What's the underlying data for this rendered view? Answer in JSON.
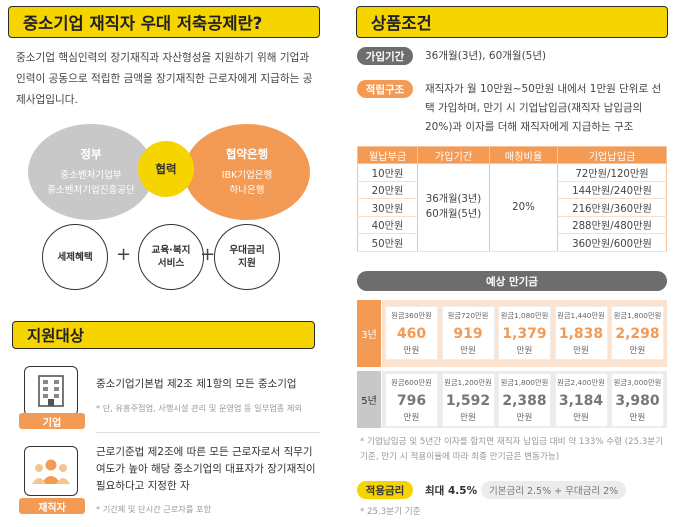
{
  "left": {
    "title": "중소기업 재직자 우대 저축공제란?",
    "intro": "중소기업 핵심인력의 장기재직과 자산형성을 지원하기 위해 기업과 인력이 공동으로 적립한 금액을 장기재직한 근로자에게 지급하는 공제사업입니다.",
    "gov": {
      "title": "정부",
      "line1": "중소벤처기업부",
      "line2": "중소벤처기업진흥공단"
    },
    "middle": "협력",
    "bank": {
      "title": "협약은행",
      "line1": "IBK기업은행",
      "line2": "하나은행"
    },
    "benefits": [
      "세제혜택",
      "교육·복지\n서비스",
      "우대금리\n지원"
    ],
    "plus": "+",
    "support_title": "지원대상",
    "company": {
      "tag": "기업",
      "text": "중소기업기본법 제2조 제1항의 모든 중소기업",
      "note": "* 단, 유흥주점업, 사행시설 관리 및 운영업 등 일부업종 제외"
    },
    "employee": {
      "tag": "재직자",
      "text": "근로기준법 제2조에 따른 모든 근로자로서 직무기여도가 높아 해당 중소기업의 대표자가 장기재직이 필요하다고 지정한 자",
      "note": "* 기간제 및 단시간 근로자를 포함"
    }
  },
  "right": {
    "title": "상품조건",
    "period_label": "가입기간",
    "period_value": "36개월(3년), 60개월(5년)",
    "structure_label": "적립구조",
    "structure_value": "재직자가 월 10만원~50만원 내에서 1만원 단위로 선택 가입하며, 만기 시 기업납입금(재직자 납입금의 20%)과 이자를 더해 재직자에게 지급하는 구조",
    "table": {
      "headers": [
        "월납부금",
        "가입기간",
        "매칭비율",
        "기업납입금"
      ],
      "monthly": [
        "10만원",
        "20만원",
        "30만원",
        "40만원",
        "50만원"
      ],
      "period": "36개월(3년)\n60개월(5년)",
      "ratio": "20%",
      "company_pay": [
        "72만원/120만원",
        "144만원/240만원",
        "216만원/360만원",
        "288만원/480만원",
        "360만원/600만원"
      ]
    },
    "maturity_title": "예상 만기금",
    "row3": {
      "label": "3년",
      "principal": [
        "원금360만원",
        "원금720만원",
        "원금1,080만원",
        "원금1,440만원",
        "원금1,800만원"
      ],
      "amount": [
        "460",
        "919",
        "1,379",
        "1,838",
        "2,298"
      ],
      "unit": "만원"
    },
    "row5": {
      "label": "5년",
      "principal": [
        "원금600만원",
        "원금1,200만원",
        "원금1,800만원",
        "원금2,400만원",
        "원금3,000만원"
      ],
      "amount": [
        "796",
        "1,592",
        "2,388",
        "3,184",
        "3,980"
      ],
      "unit": "만원"
    },
    "note": "* 기업납입금 및 5년간 이자를 합치면 재직자 납입금 대비 약 133% 수령 (25.3분기 기준, 만기 시 적용이율에 따라 최종 만기금은 변동가능)",
    "rate_label": "적용금리",
    "rate_max": "최대 4.5%",
    "rate_detail": "기본금리 2.5% + 우대금리 2%",
    "rate_foot": "* 25.3분기 기준"
  },
  "colors": {
    "yellow": "#f6d400",
    "orange": "#f39a55",
    "gray": "#6d6d6d"
  },
  "icons": {
    "company": "building-icon",
    "employee": "people-icon"
  }
}
